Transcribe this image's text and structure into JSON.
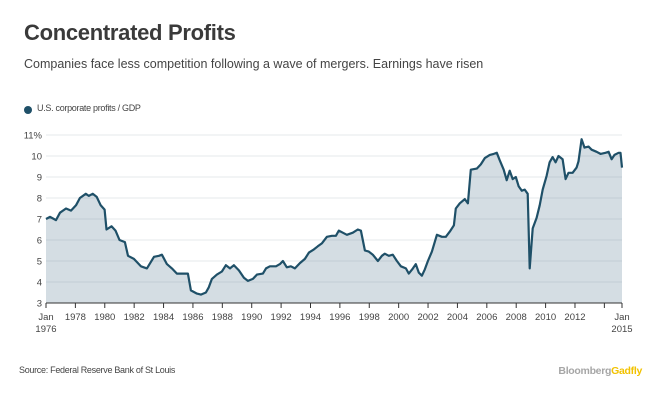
{
  "title": "Concentrated Profits",
  "subtitle": "Companies face less competition following a wave of mergers. Earnings have risen",
  "source": "Source: Federal Reserve Bank of St Louis",
  "brand": {
    "part1": "Bloomberg",
    "part2": "Gadfly"
  },
  "colors": {
    "line": "#1f5068",
    "fill": "#d4dde3",
    "grid": "#e6e9eb",
    "brand_gray": "#a6a6a6",
    "brand_yellow": "#f2c200"
  },
  "chart_data": {
    "type": "area",
    "title": "Concentrated Profits",
    "xlabel": "",
    "ylabel": "",
    "legend": {
      "entries": [
        "U.S. corporate profits / GDP"
      ],
      "position": "top-left"
    },
    "grid": true,
    "xlim": [
      1976.0,
      2015.2
    ],
    "ylim": [
      3,
      11
    ],
    "y_ticks": [
      {
        "value": 11,
        "label": "11%"
      },
      {
        "value": 10,
        "label": "10"
      },
      {
        "value": 9,
        "label": "9"
      },
      {
        "value": 8,
        "label": "8"
      },
      {
        "value": 7,
        "label": "7"
      },
      {
        "value": 6,
        "label": "6"
      },
      {
        "value": 5,
        "label": "5"
      },
      {
        "value": 4,
        "label": "4"
      },
      {
        "value": 3,
        "label": "3"
      }
    ],
    "x_ticks": [
      {
        "value": 1976,
        "label": "Jan",
        "label2": "1976"
      },
      {
        "value": 1978,
        "label": "1978"
      },
      {
        "value": 1980,
        "label": "1980"
      },
      {
        "value": 1982,
        "label": "1982"
      },
      {
        "value": 1984,
        "label": "1984"
      },
      {
        "value": 1986,
        "label": "1986"
      },
      {
        "value": 1988,
        "label": "1988"
      },
      {
        "value": 1990,
        "label": "1990"
      },
      {
        "value": 1992,
        "label": "1992"
      },
      {
        "value": 1994,
        "label": "1994"
      },
      {
        "value": 1996,
        "label": "1996"
      },
      {
        "value": 1998,
        "label": "1998"
      },
      {
        "value": 2000,
        "label": "2000"
      },
      {
        "value": 2002,
        "label": "2002"
      },
      {
        "value": 2004,
        "label": "2004"
      },
      {
        "value": 2006,
        "label": "2006"
      },
      {
        "value": 2008,
        "label": "2008"
      },
      {
        "value": 2010,
        "label": "2010"
      },
      {
        "value": 2012,
        "label": "2012"
      },
      {
        "value": 2014,
        "label": ""
      },
      {
        "value": 2015.2,
        "label": "Jan",
        "label2": "2015"
      }
    ],
    "series": [
      {
        "name": "U.S. corporate profits / GDP",
        "unit": "%",
        "points": [
          [
            1976.0,
            7.0
          ],
          [
            1976.27,
            7.1
          ],
          [
            1976.68,
            6.95
          ],
          [
            1976.95,
            7.3
          ],
          [
            1977.36,
            7.5
          ],
          [
            1977.7,
            7.4
          ],
          [
            1978.04,
            7.65
          ],
          [
            1978.31,
            8.0
          ],
          [
            1978.71,
            8.2
          ],
          [
            1978.91,
            8.1
          ],
          [
            1979.18,
            8.2
          ],
          [
            1979.45,
            8.05
          ],
          [
            1979.72,
            7.65
          ],
          [
            1979.99,
            7.45
          ],
          [
            1980.12,
            6.5
          ],
          [
            1980.46,
            6.65
          ],
          [
            1980.73,
            6.45
          ],
          [
            1981.0,
            6.0
          ],
          [
            1981.37,
            5.9
          ],
          [
            1981.58,
            5.25
          ],
          [
            1981.98,
            5.1
          ],
          [
            1982.46,
            4.75
          ],
          [
            1982.87,
            4.65
          ],
          [
            1983.35,
            5.2
          ],
          [
            1983.69,
            5.25
          ],
          [
            1983.89,
            5.3
          ],
          [
            1984.23,
            4.85
          ],
          [
            1984.57,
            4.65
          ],
          [
            1984.91,
            4.4
          ],
          [
            1985.66,
            4.4
          ],
          [
            1985.86,
            3.6
          ],
          [
            1986.27,
            3.45
          ],
          [
            1986.54,
            3.4
          ],
          [
            1986.88,
            3.5
          ],
          [
            1987.08,
            3.75
          ],
          [
            1987.29,
            4.15
          ],
          [
            1987.63,
            4.35
          ],
          [
            1987.97,
            4.5
          ],
          [
            1988.24,
            4.8
          ],
          [
            1988.52,
            4.65
          ],
          [
            1988.79,
            4.8
          ],
          [
            1989.13,
            4.55
          ],
          [
            1989.47,
            4.2
          ],
          [
            1989.74,
            4.05
          ],
          [
            1990.08,
            4.15
          ],
          [
            1990.35,
            4.35
          ],
          [
            1990.76,
            4.4
          ],
          [
            1990.97,
            4.65
          ],
          [
            1991.24,
            4.75
          ],
          [
            1991.65,
            4.75
          ],
          [
            1991.92,
            4.85
          ],
          [
            1992.12,
            5.0
          ],
          [
            1992.39,
            4.7
          ],
          [
            1992.67,
            4.75
          ],
          [
            1992.94,
            4.65
          ],
          [
            1993.28,
            4.9
          ],
          [
            1993.62,
            5.1
          ],
          [
            1993.89,
            5.4
          ],
          [
            1994.23,
            5.55
          ],
          [
            1994.5,
            5.7
          ],
          [
            1994.78,
            5.85
          ],
          [
            1995.12,
            6.15
          ],
          [
            1995.46,
            6.2
          ],
          [
            1995.73,
            6.2
          ],
          [
            1995.93,
            6.45
          ],
          [
            1996.2,
            6.35
          ],
          [
            1996.48,
            6.25
          ],
          [
            1996.88,
            6.35
          ],
          [
            1997.22,
            6.5
          ],
          [
            1997.43,
            6.45
          ],
          [
            1997.7,
            5.5
          ],
          [
            1997.97,
            5.45
          ],
          [
            1998.24,
            5.3
          ],
          [
            1998.59,
            5.0
          ],
          [
            1998.86,
            5.25
          ],
          [
            1999.06,
            5.35
          ],
          [
            1999.33,
            5.25
          ],
          [
            1999.6,
            5.3
          ],
          [
            1999.88,
            5.0
          ],
          [
            2000.15,
            4.75
          ],
          [
            2000.49,
            4.65
          ],
          [
            2000.69,
            4.4
          ],
          [
            2000.97,
            4.65
          ],
          [
            2001.17,
            4.85
          ],
          [
            2001.37,
            4.45
          ],
          [
            2001.58,
            4.3
          ],
          [
            2001.78,
            4.6
          ],
          [
            2001.99,
            5.0
          ],
          [
            2002.26,
            5.45
          ],
          [
            2002.6,
            6.25
          ],
          [
            2002.94,
            6.15
          ],
          [
            2003.21,
            6.15
          ],
          [
            2003.48,
            6.4
          ],
          [
            2003.76,
            6.7
          ],
          [
            2003.89,
            7.5
          ],
          [
            2004.16,
            7.75
          ],
          [
            2004.5,
            7.95
          ],
          [
            2004.71,
            7.75
          ],
          [
            2004.91,
            9.35
          ],
          [
            2005.32,
            9.4
          ],
          [
            2005.59,
            9.6
          ],
          [
            2005.86,
            9.9
          ],
          [
            2006.2,
            10.05
          ],
          [
            2006.47,
            10.1
          ],
          [
            2006.68,
            10.15
          ],
          [
            2006.88,
            9.8
          ],
          [
            2007.15,
            9.35
          ],
          [
            2007.35,
            8.85
          ],
          [
            2007.56,
            9.3
          ],
          [
            2007.76,
            8.9
          ],
          [
            2007.97,
            9.0
          ],
          [
            2008.17,
            8.55
          ],
          [
            2008.38,
            8.35
          ],
          [
            2008.58,
            8.4
          ],
          [
            2008.78,
            8.2
          ],
          [
            2008.92,
            4.65
          ],
          [
            2009.12,
            6.55
          ],
          [
            2009.39,
            7.05
          ],
          [
            2009.6,
            7.65
          ],
          [
            2009.8,
            8.4
          ],
          [
            2010.07,
            9.05
          ],
          [
            2010.27,
            9.7
          ],
          [
            2010.48,
            9.95
          ],
          [
            2010.68,
            9.7
          ],
          [
            2010.88,
            10.0
          ],
          [
            2011.16,
            9.85
          ],
          [
            2011.36,
            8.9
          ],
          [
            2011.56,
            9.2
          ],
          [
            2011.84,
            9.2
          ],
          [
            2012.11,
            9.45
          ],
          [
            2012.24,
            9.75
          ],
          [
            2012.45,
            10.8
          ],
          [
            2012.65,
            10.4
          ],
          [
            2012.93,
            10.45
          ],
          [
            2013.13,
            10.3
          ],
          [
            2013.47,
            10.2
          ],
          [
            2013.74,
            10.1
          ],
          [
            2014.08,
            10.15
          ],
          [
            2014.29,
            10.2
          ],
          [
            2014.49,
            9.85
          ],
          [
            2014.69,
            10.05
          ],
          [
            2014.97,
            10.15
          ],
          [
            2015.1,
            10.15
          ],
          [
            2015.2,
            9.45
          ]
        ]
      }
    ]
  }
}
